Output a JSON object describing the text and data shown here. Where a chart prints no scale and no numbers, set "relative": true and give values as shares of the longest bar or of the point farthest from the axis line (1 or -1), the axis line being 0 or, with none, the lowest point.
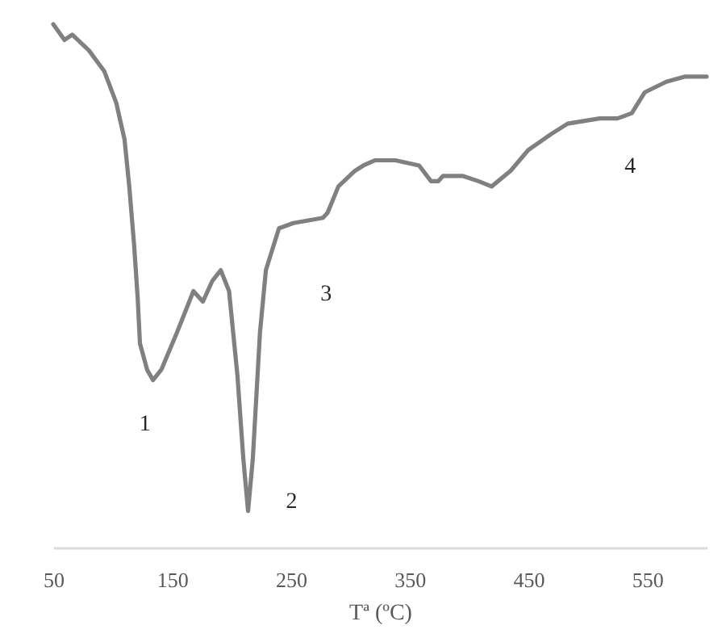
{
  "chart_data": {
    "type": "line",
    "relative": true,
    "xlabel": "Tª (ºC)",
    "xlim": [
      50,
      600
    ],
    "xticks": [
      50,
      150,
      250,
      350,
      450,
      550
    ],
    "grid": false,
    "marker": "none",
    "line_style": "solid",
    "x": [
      50,
      59.5,
      66,
      80,
      93,
      103,
      110,
      114,
      118,
      121,
      123,
      129,
      134,
      141,
      154,
      168,
      176,
      184,
      191,
      198,
      205,
      210,
      214,
      218,
      224,
      229,
      240,
      252,
      277,
      281,
      290,
      304,
      311,
      321,
      338,
      358,
      368,
      374,
      378,
      395,
      408,
      419,
      435,
      450,
      469,
      483,
      510,
      525,
      537,
      548,
      566,
      582,
      600
    ],
    "series": [
      {
        "color": "#808080",
        "values": [
          1.0,
          0.97,
          0.98,
          0.95,
          0.91,
          0.85,
          0.78,
          0.69,
          0.58,
          0.48,
          0.39,
          0.34,
          0.32,
          0.34,
          0.41,
          0.49,
          0.47,
          0.51,
          0.53,
          0.49,
          0.33,
          0.17,
          0.07,
          0.17,
          0.41,
          0.53,
          0.61,
          0.62,
          0.63,
          0.64,
          0.69,
          0.72,
          0.73,
          0.74,
          0.74,
          0.73,
          0.7,
          0.7,
          0.71,
          0.71,
          0.7,
          0.69,
          0.72,
          0.76,
          0.79,
          0.81,
          0.82,
          0.82,
          0.83,
          0.87,
          0.89,
          0.9,
          0.9
        ]
      }
    ],
    "annotations": [
      {
        "text": "1",
        "x": 134,
        "y": 0.32
      },
      {
        "text": "2",
        "x": 214,
        "y": 0.07
      },
      {
        "text": "3",
        "x": 277,
        "y": 0.63
      },
      {
        "text": "4",
        "x": 537,
        "y": 0.83
      }
    ]
  }
}
